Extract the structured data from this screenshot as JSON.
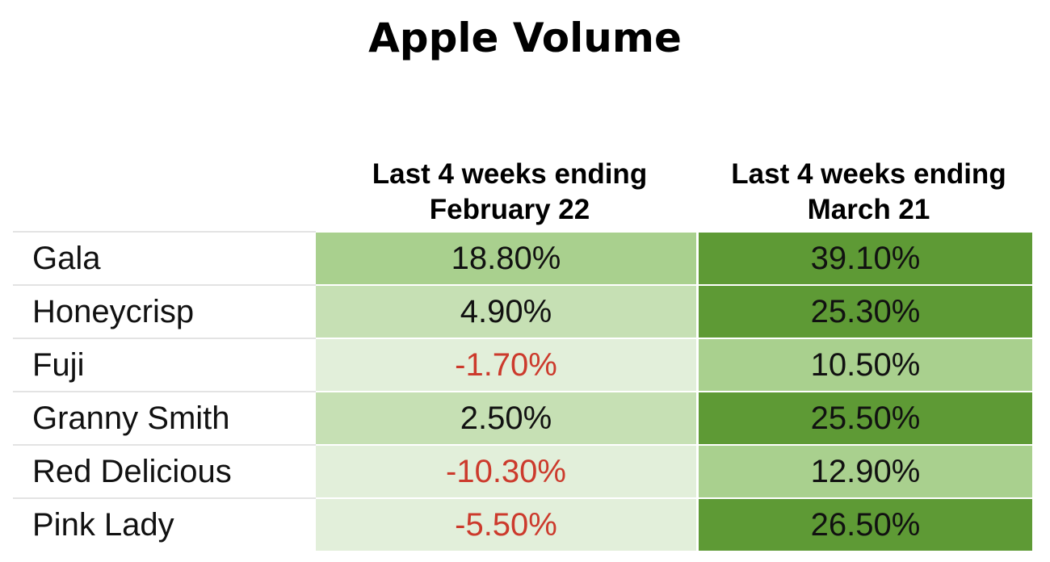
{
  "chart_data": {
    "type": "table",
    "title": "Apple Volume",
    "columns": [
      "",
      "Last 4 weeks ending February 22",
      "Last 4 weeks ending March 21"
    ],
    "rows": [
      {
        "name": "Gala",
        "feb": "18.80%",
        "mar": "39.10%",
        "feb_value": 18.8,
        "mar_value": 39.1
      },
      {
        "name": "Honeycrisp",
        "feb": "4.90%",
        "mar": "25.30%",
        "feb_value": 4.9,
        "mar_value": 25.3
      },
      {
        "name": "Fuji",
        "feb": "-1.70%",
        "mar": "10.50%",
        "feb_value": -1.7,
        "mar_value": 10.5
      },
      {
        "name": "Granny Smith",
        "feb": "2.50%",
        "mar": "25.50%",
        "feb_value": 2.5,
        "mar_value": 25.5
      },
      {
        "name": "Red Delicious",
        "feb": "-10.30%",
        "mar": "12.90%",
        "feb_value": -10.3,
        "mar_value": 12.9
      },
      {
        "name": "Pink Lady",
        "feb": "-5.50%",
        "mar": "26.50%",
        "feb_value": -5.5,
        "mar_value": 26.5
      }
    ],
    "colors": {
      "darkest": "#5e9a35",
      "dark": "#a9d08e",
      "medium": "#c6e0b4",
      "light": "#e2efda",
      "negative_text": "#cc3a2c"
    }
  }
}
